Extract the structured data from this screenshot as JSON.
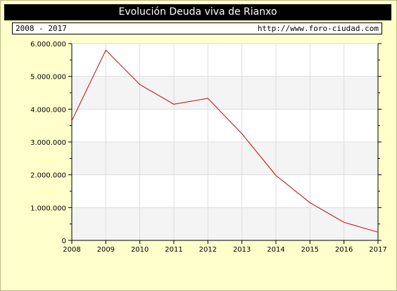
{
  "header": {
    "title": "Evolución Deuda viva de Rianxo",
    "period": "2008 - 2017",
    "url": "http://www.foro-ciudad.com"
  },
  "colors": {
    "background": "#ffffcc",
    "title_bar": "#000000",
    "line": "#cc0000",
    "band": "#f4f4f4",
    "grid": "#dddddd"
  },
  "chart_data": {
    "type": "line",
    "title": "Evolución Deuda viva de Rianxo",
    "xlabel": "",
    "ylabel": "",
    "x": [
      2008,
      2009,
      2010,
      2011,
      2012,
      2013,
      2014,
      2015,
      2016,
      2017
    ],
    "series": [
      {
        "values": [
          3650000,
          5800000,
          4750000,
          4150000,
          4330000,
          3250000,
          1980000,
          1150000,
          550000,
          250000
        ]
      }
    ],
    "xlim": [
      2008,
      2017
    ],
    "ylim": [
      0,
      6000000
    ],
    "y_ticks": [
      0,
      1000000,
      2000000,
      3000000,
      4000000,
      5000000,
      6000000
    ],
    "y_tick_labels": [
      "0",
      "1.000.000",
      "2.000.000",
      "3.000.000",
      "4.000.000",
      "5.000.000",
      "6.000.000"
    ],
    "x_tick_labels": [
      "2008",
      "2009",
      "2010",
      "2011",
      "2012",
      "2013",
      "2014",
      "2015",
      "2016",
      "2017"
    ],
    "grid": true,
    "legend": "none"
  }
}
